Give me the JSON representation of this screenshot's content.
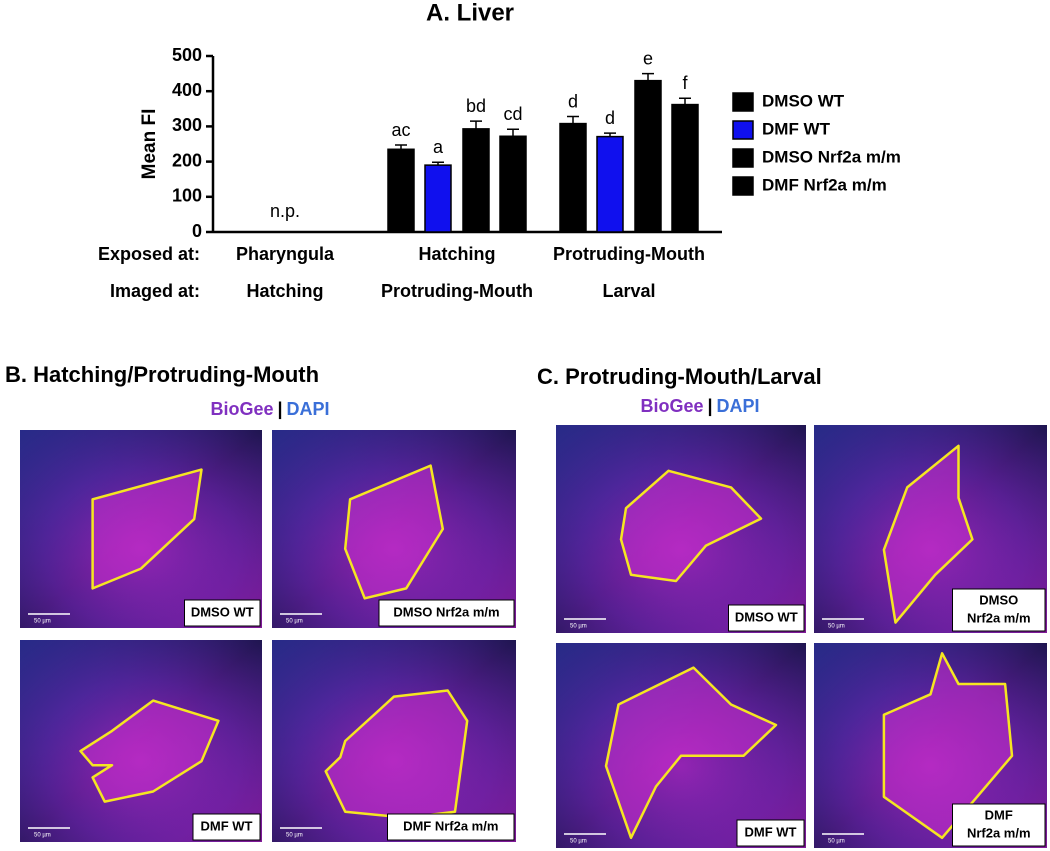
{
  "chart_data": {
    "type": "bar",
    "title": "A. Liver",
    "y_label": "Mean FI",
    "ylim": [
      0,
      500
    ],
    "yticks": [
      0,
      100,
      200,
      300,
      400,
      500
    ],
    "row_labels": [
      "Exposed at:",
      "Imaged at:"
    ],
    "categories": [
      "Pharyngula",
      "Hatching",
      "Protruding-Mouth"
    ],
    "imaged_categories": [
      "Hatching",
      "Protruding-Mouth",
      "Larval"
    ],
    "annotations": [
      "n.p.",
      null,
      null
    ],
    "legend": "right",
    "series": [
      {
        "name": "DMSO WT",
        "color": "#000000",
        "hatch": false,
        "values": [
          null,
          235,
          308
        ],
        "errors": [
          null,
          12,
          20
        ],
        "significance_labels": [
          null,
          "ac",
          "d"
        ]
      },
      {
        "name": "DMF WT",
        "color": "#1010ee",
        "hatch": false,
        "values": [
          null,
          190,
          271
        ],
        "errors": [
          null,
          8,
          10
        ],
        "significance_labels": [
          null,
          "a",
          "d"
        ]
      },
      {
        "name": "DMSO Nrf2a m/m",
        "color": "#a0a0a0",
        "hatch": true,
        "values": [
          null,
          293,
          430
        ],
        "errors": [
          null,
          22,
          20
        ],
        "significance_labels": [
          null,
          "bd",
          "e"
        ]
      },
      {
        "name": "DMF Nrf2a m/m",
        "color": "#22cc22",
        "hatch": true,
        "values": [
          null,
          272,
          362
        ],
        "errors": [
          null,
          20,
          18
        ],
        "significance_labels": [
          null,
          "cd",
          "f"
        ]
      }
    ]
  },
  "panels": [
    {
      "title": "B. Hatching/Protruding-Mouth",
      "legend": [
        "BioGee",
        "|",
        "DAPI"
      ],
      "images": [
        {
          "label": [
            "DMSO WT"
          ],
          "scale": "50 µm"
        },
        {
          "label": [
            "DMSO Nrf2a m/m"
          ],
          "scale": "50 µm"
        },
        {
          "label": [
            "DMF WT"
          ],
          "scale": "50 µm"
        },
        {
          "label": [
            "DMF Nrf2a m/m"
          ],
          "scale": "50 µm"
        }
      ]
    },
    {
      "title": "C. Protruding-Mouth/Larval",
      "legend": [
        "BioGee",
        "|",
        "DAPI"
      ],
      "images": [
        {
          "label": [
            "DMSO WT"
          ],
          "scale": "50 µm"
        },
        {
          "label": [
            "DMSO",
            "Nrf2a m/m"
          ],
          "scale": "50 µm"
        },
        {
          "label": [
            "DMF WT"
          ],
          "scale": "50 µm"
        },
        {
          "label": [
            "DMF",
            "Nrf2a m/m"
          ],
          "scale": "50 µm"
        }
      ]
    }
  ]
}
